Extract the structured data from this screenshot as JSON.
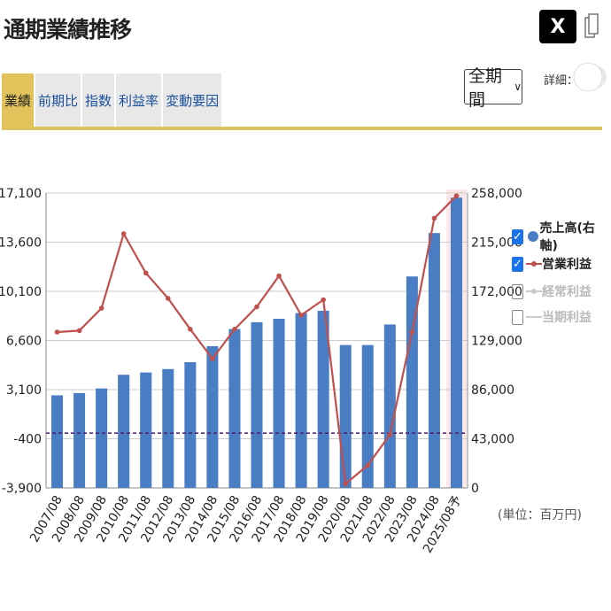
{
  "header": {
    "title": "通期業績推移",
    "x_button": "X"
  },
  "tabs": [
    {
      "label": "業績",
      "active": true
    },
    {
      "label": "前期比",
      "active": false
    },
    {
      "label": "指数",
      "active": false
    },
    {
      "label": "利益率",
      "active": false
    },
    {
      "label": "変動要因",
      "active": false
    }
  ],
  "controls": {
    "period": "全期間",
    "detail_label": "詳細：",
    "detail_on": false
  },
  "legend": [
    {
      "label": "売上高(右軸)",
      "checked": true,
      "symbol": "dot",
      "color": "#4a7ec4"
    },
    {
      "label": "営業利益",
      "checked": true,
      "symbol": "line-marker",
      "color": "#c0504d"
    },
    {
      "label": "経常利益",
      "checked": false,
      "symbol": "line-marker",
      "color": "#cccccc"
    },
    {
      "label": "当期利益",
      "checked": false,
      "symbol": "line",
      "color": "#cccccc"
    }
  ],
  "unit": "(単位：百万円)",
  "chart_data": {
    "type": "bar",
    "categories": [
      "2007/08",
      "2008/08",
      "2009/08",
      "2010/08",
      "2011/08",
      "2012/08",
      "2013/08",
      "2014/08",
      "2015/08",
      "2016/08",
      "2017/08",
      "2018/08",
      "2019/08",
      "2020/08",
      "2021/08",
      "2022/08",
      "2023/08",
      "2024/08",
      "2025/08予"
    ],
    "left_axis": {
      "ticks": [
        "17,100",
        "13,600",
        "10,100",
        "6,600",
        "3,100",
        "-400",
        "-3,900"
      ],
      "min": -3900,
      "max": 17100
    },
    "right_axis": {
      "ticks": [
        "258,000",
        "215,000",
        "172,000",
        "129,000",
        "86,000",
        "43,000",
        "0"
      ],
      "min": 0,
      "max": 258000
    },
    "series": [
      {
        "name": "売上高(右軸)",
        "type": "bar",
        "axis": "right",
        "color": "#4a7ec4",
        "values": [
          81000,
          83000,
          87000,
          99000,
          101000,
          104000,
          110000,
          124000,
          139000,
          145000,
          148000,
          153000,
          155000,
          125000,
          125000,
          143000,
          185000,
          223000,
          254000
        ]
      },
      {
        "name": "営業利益",
        "type": "line",
        "axis": "left",
        "color": "#c0504d",
        "values": [
          7200,
          7300,
          8900,
          14200,
          11400,
          9600,
          7400,
          5300,
          7400,
          9000,
          11200,
          8400,
          9500,
          -3600,
          -2300,
          -100,
          7200,
          15300,
          16900
        ]
      }
    ],
    "zero_line": {
      "axis": "left",
      "value": 0,
      "color": "#4a1a6a",
      "style": "dashed"
    },
    "forecast_highlight": "2025/08予",
    "grid": true
  }
}
